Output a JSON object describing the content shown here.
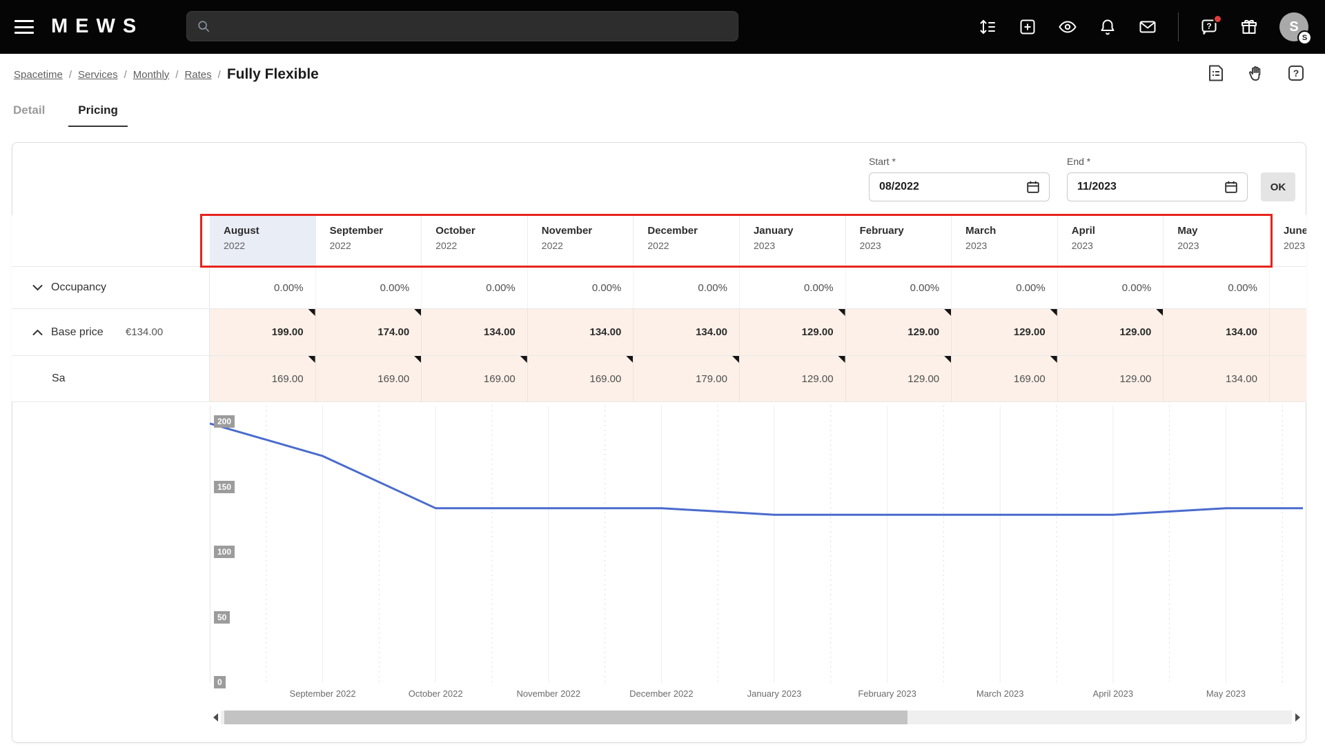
{
  "topbar": {
    "logo": "MEWS",
    "search_placeholder": "",
    "icons": [
      "sort-list-icon",
      "add-icon",
      "watch-icon",
      "notifications-icon",
      "messages-icon",
      "help-icon",
      "gifts-icon"
    ],
    "help_has_badge": true,
    "avatar_initial": "S",
    "avatar_badge": "S"
  },
  "breadcrumb": {
    "links": [
      "Spacetime",
      "Services",
      "Monthly",
      "Rates"
    ],
    "separator": "/",
    "current": "Fully Flexible"
  },
  "page_icons": [
    "report-icon",
    "hand-icon",
    "help-square-icon"
  ],
  "tabs": [
    {
      "label": "Detail",
      "active": false
    },
    {
      "label": "Pricing",
      "active": true
    }
  ],
  "filters": {
    "start_label": "Start *",
    "start_value": "08/2022",
    "end_label": "End *",
    "end_value": "11/2023",
    "ok_label": "OK"
  },
  "table": {
    "months": [
      {
        "name": "August",
        "year": "2022",
        "highlighted": true
      },
      {
        "name": "September",
        "year": "2022"
      },
      {
        "name": "October",
        "year": "2022"
      },
      {
        "name": "November",
        "year": "2022"
      },
      {
        "name": "December",
        "year": "2022"
      },
      {
        "name": "January",
        "year": "2023"
      },
      {
        "name": "February",
        "year": "2023"
      },
      {
        "name": "March",
        "year": "2023"
      },
      {
        "name": "April",
        "year": "2023"
      },
      {
        "name": "May",
        "year": "2023"
      },
      {
        "name": "June",
        "year": "2023"
      }
    ],
    "rows": {
      "occupancy": {
        "label": "Occupancy",
        "values": [
          "0.00%",
          "0.00%",
          "0.00%",
          "0.00%",
          "0.00%",
          "0.00%",
          "0.00%",
          "0.00%",
          "0.00%",
          "0.00%",
          ""
        ]
      },
      "base_price": {
        "label": "Base price",
        "price": "€134.00",
        "values": [
          "199.00",
          "174.00",
          "134.00",
          "134.00",
          "134.00",
          "129.00",
          "129.00",
          "129.00",
          "129.00",
          "134.00",
          ""
        ],
        "edited_markers": [
          true,
          true,
          false,
          false,
          false,
          true,
          true,
          true,
          true,
          false,
          false
        ]
      },
      "sa": {
        "label": "Sa",
        "values": [
          "169.00",
          "169.00",
          "169.00",
          "169.00",
          "179.00",
          "129.00",
          "129.00",
          "169.00",
          "129.00",
          "134.00",
          ""
        ],
        "edited_markers": [
          true,
          true,
          true,
          true,
          true,
          true,
          true,
          true,
          false,
          false,
          false
        ]
      }
    }
  },
  "chart_data": {
    "type": "line",
    "title": "",
    "x": [
      "Aug 2022",
      "Sep 2022",
      "Oct 2022",
      "Nov 2022",
      "Dec 2022",
      "Jan 2023",
      "Feb 2023",
      "Mar 2023",
      "Apr 2023",
      "May 2023",
      "Jun 2023"
    ],
    "values": [
      199,
      174,
      134,
      134,
      134,
      129,
      129,
      129,
      129,
      134,
      134
    ],
    "y_ticks": [
      200,
      150,
      100,
      50,
      0
    ],
    "x_axis_labels": [
      "September 2022",
      "October 2022",
      "November 2022",
      "December 2022",
      "January 2023",
      "February 2023",
      "March 2023",
      "April 2023",
      "May 2023"
    ],
    "ylim": [
      0,
      213
    ],
    "grid": "vertical",
    "legend": "none"
  },
  "colors": {
    "annotation_red": "#e8231d",
    "month_highlight": "#e9edf6",
    "edited_cell_bg": "#fcf0e8",
    "chart_line": "#4a6bcd",
    "axis_badge_bg": "#9c9c9c",
    "topbar_bg": "#050505"
  }
}
